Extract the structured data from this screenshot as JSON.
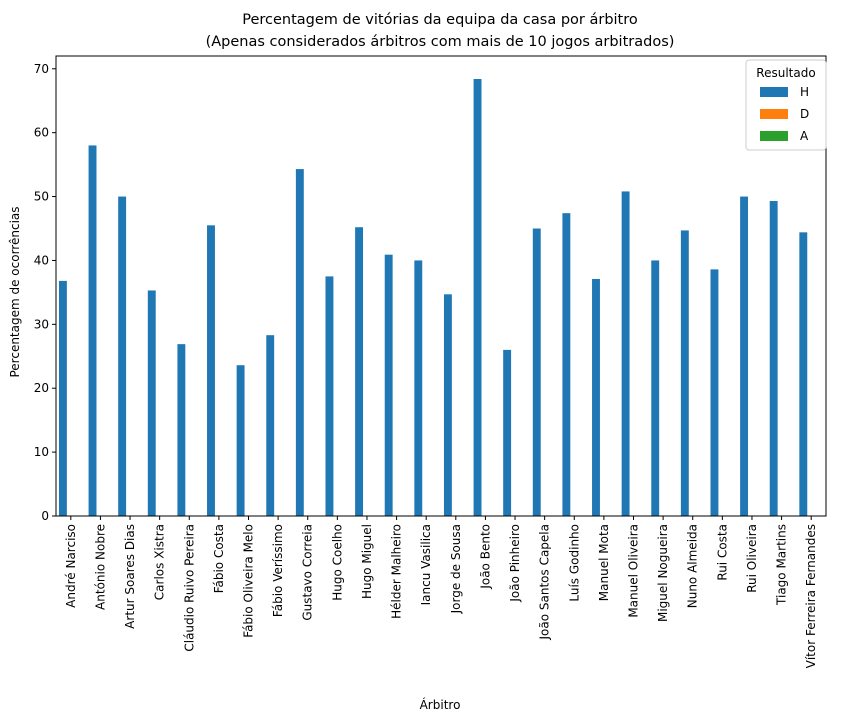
{
  "chart_data": {
    "type": "bar",
    "title": "Percentagem de vitórias da equipa da casa por árbitro",
    "subtitle": "(Apenas considerados árbitros com mais de 10 jogos arbitrados)",
    "xlabel": "Árbitro",
    "ylabel": "Percentagem de ocorrências",
    "ylim": [
      0,
      72
    ],
    "yticks": [
      0,
      10,
      20,
      30,
      40,
      50,
      60,
      70
    ],
    "grid": false,
    "legend": {
      "title": "Resultado",
      "placement": "top-right"
    },
    "categories": [
      "André Narciso",
      "António Nobre",
      "Artur Soares Dias",
      "Carlos Xistra",
      "Cláudio Ruivo Pereira",
      "Fábio Costa",
      "Fábio Oliveira Melo",
      "Fábio Veríssimo",
      "Gustavo Correia",
      "Hugo Coelho",
      "Hugo Miguel",
      "Hélder Malheiro",
      "Iancu Vasilica",
      "Jorge de Sousa",
      "João Bento",
      "João Pinheiro",
      "João Santos Capela",
      "Luís Godinho",
      "Manuel Mota",
      "Manuel Oliveira",
      "Miguel Nogueira",
      "Nuno Almeida",
      "Rui Costa",
      "Rui Oliveira",
      "Tiago Martins",
      "Vítor Ferreira Fernandes"
    ],
    "series": [
      {
        "name": "H",
        "color": "#1f77b4",
        "values": [
          36.8,
          58.0,
          50.0,
          35.3,
          26.9,
          45.5,
          23.6,
          28.3,
          54.3,
          37.5,
          45.2,
          40.9,
          40.0,
          34.7,
          68.4,
          26.0,
          45.0,
          47.4,
          37.1,
          50.8,
          40.0,
          44.7,
          38.6,
          50.0,
          49.3,
          44.4
        ]
      },
      {
        "name": "D",
        "color": "#ff7f0e",
        "values": [
          0,
          0,
          0,
          0,
          0,
          0,
          0,
          0,
          0,
          0,
          0,
          0,
          0,
          0,
          0,
          0,
          0,
          0,
          0,
          0,
          0,
          0,
          0,
          0,
          0,
          0
        ]
      },
      {
        "name": "A",
        "color": "#2ca02c",
        "values": [
          0,
          0,
          0,
          0,
          0,
          0,
          0,
          0,
          0,
          0,
          0,
          0,
          0,
          0,
          0,
          0,
          0,
          0,
          0,
          0,
          0,
          0,
          0,
          0,
          0,
          0
        ]
      }
    ]
  }
}
